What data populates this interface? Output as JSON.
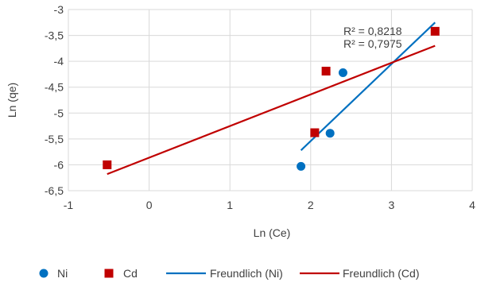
{
  "chart_data": {
    "type": "scatter",
    "xlabel": "Ln (Ce)",
    "ylabel": "Ln (qe)",
    "xlim": [
      -1,
      4
    ],
    "ylim": [
      -6.5,
      -3
    ],
    "x_ticks": [
      "-1",
      "0",
      "1",
      "2",
      "3",
      "4"
    ],
    "y_ticks": [
      "-3",
      "-3,5",
      "-4",
      "-4,5",
      "-5",
      "-5,5",
      "-6",
      "-6,5"
    ],
    "grid": true,
    "legend_position": "bottom",
    "series": [
      {
        "name": "Ni",
        "marker": "circle",
        "color": "#0070C0",
        "points": [
          {
            "x": 1.88,
            "y": -6.03
          },
          {
            "x": 2.24,
            "y": -5.39
          },
          {
            "x": 2.4,
            "y": -4.22
          }
        ]
      },
      {
        "name": "Cd",
        "marker": "square",
        "color": "#C00000",
        "points": [
          {
            "x": -0.52,
            "y": -6.0
          },
          {
            "x": 2.05,
            "y": -5.38
          },
          {
            "x": 2.19,
            "y": -4.19
          },
          {
            "x": 3.54,
            "y": -3.42
          }
        ]
      }
    ],
    "trendlines": [
      {
        "name": "Freundlich (Ni)",
        "color": "#0070C0",
        "from": {
          "x": 1.88,
          "y": -5.72
        },
        "to": {
          "x": 3.54,
          "y": -3.25
        },
        "r2_label": "R² = 0,8218"
      },
      {
        "name": "Freundlich (Cd)",
        "color": "#C00000",
        "from": {
          "x": -0.52,
          "y": -6.18
        },
        "to": {
          "x": 3.54,
          "y": -3.7
        },
        "r2_label": "R² = 0,7975"
      }
    ],
    "legend": [
      {
        "label": "Ni",
        "kind": "circle",
        "color": "#0070C0"
      },
      {
        "label": "Cd",
        "kind": "square",
        "color": "#C00000"
      },
      {
        "label": "Freundlich (Ni)",
        "kind": "line",
        "color": "#0070C0"
      },
      {
        "label": "Freundlich (Cd)",
        "kind": "line",
        "color": "#C00000"
      }
    ],
    "gridline_color": "#D9D9D9"
  }
}
